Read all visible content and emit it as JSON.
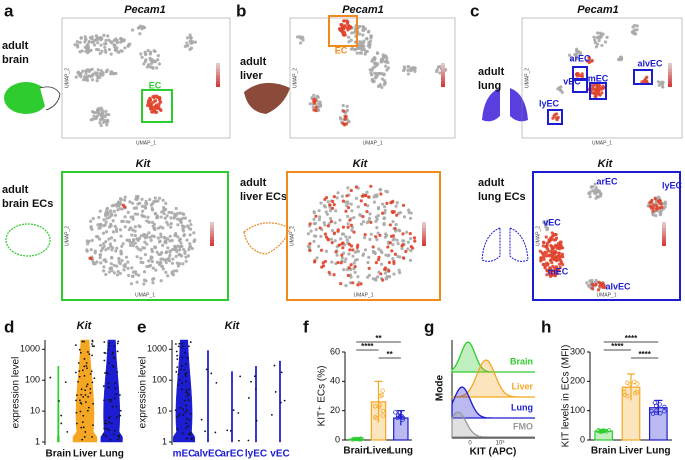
{
  "umap_panels": [
    {
      "letter": "a",
      "gene": "Pecam1",
      "tissue": [
        "adult",
        "brain"
      ],
      "x_label": "UMAP_1",
      "y_label": "UMAP_2",
      "cluster_labels": [
        "EC"
      ]
    },
    {
      "gene": "Kit",
      "tissue": [
        "adult",
        "brain ECs"
      ],
      "x_label": "UMAP_1",
      "y_label": "UMAP_2",
      "cluster_labels": []
    },
    {
      "letter": "b",
      "gene": "Pecam1",
      "tissue": [
        "adult",
        "liver"
      ],
      "x_label": "UMAP_1",
      "y_label": "UMAP_2",
      "cluster_labels": [
        "EC"
      ]
    },
    {
      "gene": "Kit",
      "tissue": [
        "adult",
        "liver ECs"
      ],
      "x_label": "UMAP_1",
      "y_label": "UMAP_2",
      "cluster_labels": []
    },
    {
      "letter": "c",
      "gene": "Pecam1",
      "tissue": [
        "adult",
        "lung"
      ],
      "x_label": "UMAP_1",
      "y_label": "UMAP_2",
      "cluster_labels": [
        "arEC",
        "alvEC",
        "vEC",
        "mEC",
        "lyEC"
      ]
    },
    {
      "gene": "Kit",
      "tissue": [
        "adult",
        "lung ECs"
      ],
      "x_label": "UMAP_1",
      "y_label": "UMAP_2",
      "cluster_labels": [
        "arEC",
        "lyEC",
        "vEC",
        "mEC",
        "alvEC"
      ]
    }
  ],
  "violin_panels": [
    {
      "letter": "d",
      "title": "Kit",
      "y_label": "expression level",
      "ylim": [
        0.8,
        2000
      ],
      "yticks": [
        1,
        10,
        100,
        1000
      ],
      "categories": [
        "Brain",
        "Liver",
        "Lung"
      ],
      "colors": [
        "#2ecc2e",
        "#f5a623",
        "#1c1cd0"
      ],
      "label_colors": [
        "#111111",
        "#111111",
        "#111111"
      ]
    },
    {
      "letter": "e",
      "title": "Kit",
      "y_label": "expression level",
      "ylim": [
        0.8,
        2000
      ],
      "yticks": [
        1,
        10,
        100,
        1000
      ],
      "categories": [
        "mEC",
        "alvEC",
        "arEC",
        "lyEC",
        "vEC"
      ],
      "colors": [
        "#1c1cd0",
        "#1c1cd0",
        "#1c1cd0",
        "#1c1cd0",
        "#1c1cd0"
      ],
      "label_colors": [
        "#1c1cd0",
        "#1c1cd0",
        "#1c1cd0",
        "#1c1cd0",
        "#1c1cd0"
      ]
    }
  ],
  "bar_panels": [
    {
      "letter": "f",
      "y_label": "KIT⁺ ECs (%)",
      "categories": [
        "Brain",
        "Liver",
        "Lung"
      ],
      "values": [
        0.5,
        26,
        15
      ],
      "errors": [
        0.5,
        14,
        5
      ],
      "ylim": [
        0,
        60
      ],
      "yticks": [
        0,
        20,
        40,
        60
      ],
      "colors": [
        "#2ecc2e",
        "#f5a623",
        "#1c1cd0"
      ],
      "significance": [
        "**",
        "****",
        "**"
      ]
    },
    {
      "letter": "h",
      "y_label": "KIT levels in ECs (MFI)",
      "categories": [
        "Brain",
        "Liver",
        "Lung"
      ],
      "values": [
        30,
        180,
        110
      ],
      "errors": [
        5,
        45,
        25
      ],
      "ylim": [
        0,
        300
      ],
      "yticks": [
        0,
        100,
        200,
        300
      ],
      "colors": [
        "#2ecc2e",
        "#f5a623",
        "#1c1cd0"
      ],
      "significance": [
        "****",
        "****",
        "****"
      ]
    }
  ],
  "flow_panel": {
    "letter": "g",
    "y_label": "Mode",
    "x_label": "KIT (APC)",
    "xtick_labels": [
      "0",
      "10³"
    ],
    "series": [
      "Brain",
      "Liver",
      "Lung",
      "FMO"
    ],
    "colors": [
      "#2ecc2e",
      "#f5a623",
      "#1c1cd0",
      "#999999"
    ]
  }
}
